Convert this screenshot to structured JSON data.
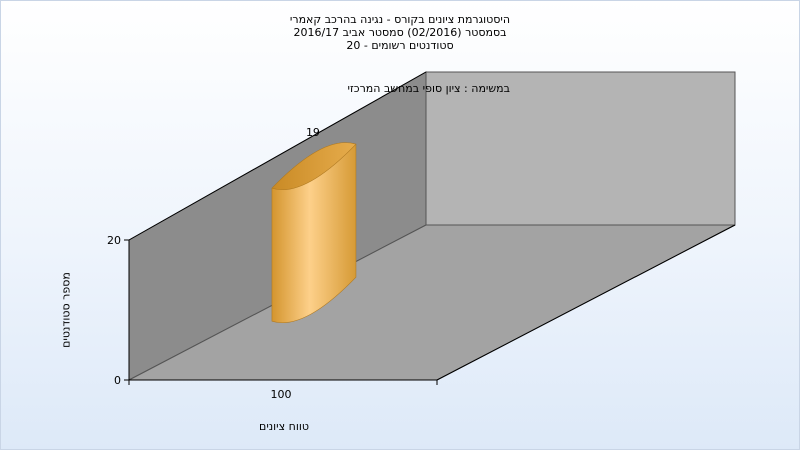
{
  "chart_data": {
    "type": "bar",
    "title_lines": [
      "היסטוגרמת ציונים בקורס - נגינה בהרכב קאמרי",
      "בסמסטר (02/2016) סמסטר אביב 2016/17",
      "סטודנטים רשומים - 20"
    ],
    "subtitle": "במשימה : ציון סופי במחשב המרכזי",
    "xlabel": "טווח ציונים",
    "ylabel": "מספר סטודנטים",
    "categories": [
      "100"
    ],
    "values": [
      19
    ],
    "data_labels": [
      "19"
    ],
    "ylim": [
      0,
      20
    ],
    "yticks": [
      "0",
      "20"
    ],
    "colors": {
      "bar_light": "#fdd08a",
      "bar_dark": "#d4952e",
      "back_wall": "#b4b4b4",
      "side_wall": "#8c8c8c",
      "floor": "#a3a3a3"
    },
    "grid": false,
    "legend": "none"
  }
}
